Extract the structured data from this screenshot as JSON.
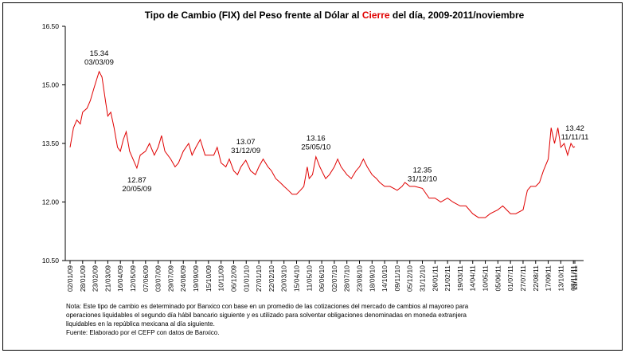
{
  "chart_data": {
    "type": "line",
    "title": [
      {
        "text": "Tipo de Cambio (FIX) del Peso frente al Dólar al ",
        "color": "#000000"
      },
      {
        "text": "Cierre",
        "color": "#e00000"
      },
      {
        "text": " del día, 2009-2011/noviembre",
        "color": "#000000"
      }
    ],
    "x": [
      "02/01/09",
      "09/01/09",
      "16/01/09",
      "23/01/09",
      "28/01/09",
      "06/02/09",
      "13/02/09",
      "20/02/09",
      "25/02/09",
      "03/03/09",
      "09/03/09",
      "16/03/09",
      "21/03/09",
      "27/03/09",
      "03/04/09",
      "10/04/09",
      "16/04/09",
      "22/04/09",
      "28/04/09",
      "05/05/09",
      "12/05/09",
      "20/05/09",
      "27/05/09",
      "07/06/09",
      "15/06/09",
      "25/06/09",
      "03/07/09",
      "10/07/09",
      "17/07/09",
      "29/07/09",
      "07/08/09",
      "14/08/09",
      "24/08/09",
      "04/09/09",
      "11/09/09",
      "19/09/09",
      "28/09/09",
      "08/10/09",
      "15/10/09",
      "26/10/09",
      "02/11/09",
      "10/11/09",
      "20/11/09",
      "27/11/09",
      "06/12/09",
      "14/12/09",
      "21/12/09",
      "31/12/09",
      "10/01/10",
      "20/01/10",
      "27/01/10",
      "05/02/10",
      "15/02/10",
      "22/02/10",
      "03/03/10",
      "12/03/10",
      "20/03/10",
      "29/03/10",
      "06/04/10",
      "15/04/10",
      "23/04/10",
      "30/04/10",
      "07/05/10",
      "11/05/10",
      "18/05/10",
      "25/05/10",
      "02/06/10",
      "06/06/10",
      "14/06/10",
      "22/06/10",
      "02/07/10",
      "09/07/10",
      "16/07/10",
      "28/07/10",
      "06/08/10",
      "16/08/10",
      "23/08/10",
      "31/08/10",
      "08/09/10",
      "18/09/10",
      "27/09/10",
      "04/10/10",
      "14/10/10",
      "25/10/10",
      "09/11/10",
      "19/11/10",
      "25/11/10",
      "05/12/10",
      "15/12/10",
      "31/12/10",
      "14/01/11",
      "26/01/11",
      "07/02/11",
      "21/02/11",
      "04/03/11",
      "19/03/11",
      "31/03/11",
      "14/04/11",
      "26/04/11",
      "10/05/11",
      "20/05/11",
      "05/06/11",
      "15/06/11",
      "01/07/11",
      "12/07/11",
      "27/07/11",
      "05/08/11",
      "12/08/11",
      "22/08/11",
      "30/08/11",
      "07/09/11",
      "17/09/11",
      "23/09/11",
      "30/09/11",
      "07/10/11",
      "13/10/11",
      "20/10/11",
      "27/10/11",
      "03/11/11",
      "08/11/11",
      "11/11/11"
    ],
    "series": [
      {
        "color": "#e00000",
        "values": [
          13.4,
          13.9,
          14.1,
          14.0,
          14.3,
          14.4,
          14.6,
          14.9,
          15.1,
          15.34,
          15.2,
          14.6,
          14.2,
          14.3,
          13.9,
          13.4,
          13.3,
          13.6,
          13.8,
          13.3,
          13.1,
          12.87,
          13.2,
          13.3,
          13.5,
          13.2,
          13.4,
          13.7,
          13.3,
          13.1,
          12.9,
          13.0,
          13.3,
          13.5,
          13.2,
          13.4,
          13.6,
          13.2,
          13.2,
          13.2,
          13.4,
          13.0,
          12.9,
          13.1,
          12.8,
          12.7,
          12.9,
          13.07,
          12.8,
          12.7,
          12.9,
          13.1,
          12.9,
          12.8,
          12.6,
          12.5,
          12.4,
          12.3,
          12.2,
          12.2,
          12.3,
          12.4,
          12.9,
          12.6,
          12.7,
          13.16,
          12.9,
          12.8,
          12.6,
          12.7,
          12.9,
          13.1,
          12.9,
          12.7,
          12.6,
          12.8,
          12.9,
          13.1,
          12.9,
          12.7,
          12.6,
          12.5,
          12.4,
          12.4,
          12.3,
          12.4,
          12.5,
          12.4,
          12.4,
          12.35,
          12.1,
          12.1,
          12.0,
          12.1,
          12.0,
          11.9,
          11.9,
          11.7,
          11.6,
          11.6,
          11.7,
          11.8,
          11.9,
          11.7,
          11.7,
          11.8,
          12.3,
          12.4,
          12.4,
          12.5,
          12.8,
          13.1,
          13.9,
          13.5,
          13.9,
          13.4,
          13.5,
          13.2,
          13.5,
          13.4,
          13.42
        ]
      }
    ],
    "xlim": [
      "02/01/09",
      "11/11/11"
    ],
    "xticks": [
      "02/01/09",
      "28/01/09",
      "23/02/09",
      "21/03/09",
      "16/04/09",
      "12/05/09",
      "07/06/09",
      "03/07/09",
      "29/07/09",
      "24/08/09",
      "19/09/09",
      "15/10/09",
      "10/11/09",
      "06/12/09",
      "01/01/10",
      "27/01/10",
      "22/02/10",
      "20/03/10",
      "15/04/10",
      "11/05/10",
      "06/06/10",
      "02/07/10",
      "28/07/10",
      "23/08/10",
      "18/09/10",
      "14/10/10",
      "09/11/10",
      "05/12/10",
      "31/12/10",
      "26/01/11",
      "21/02/11",
      "19/03/11",
      "14/04/11",
      "10/05/11",
      "05/06/11",
      "01/07/11",
      "27/07/11",
      "22/08/11",
      "17/09/11",
      "13/10/11",
      "08/11/11",
      "11/11/11"
    ],
    "ylim": [
      10.5,
      16.5
    ],
    "yticks": [
      {
        "value": 10.5,
        "label": "10.50"
      },
      {
        "value": 12,
        "label": "12.00"
      },
      {
        "value": 13.5,
        "label": "13.50"
      },
      {
        "value": 15,
        "label": "15.00"
      },
      {
        "value": 16.5,
        "label": "16.50"
      }
    ],
    "annotations": [
      {
        "value": 15.34,
        "date": "03/03/09",
        "placement": "above"
      },
      {
        "value": 12.87,
        "date": "20/05/09",
        "placement": "below"
      },
      {
        "value": 13.07,
        "date": "31/12/09",
        "placement": "above"
      },
      {
        "value": 13.16,
        "date": "25/05/10",
        "placement": "above"
      },
      {
        "value": 12.35,
        "date": "31/12/10",
        "placement": "above"
      },
      {
        "value": 13.42,
        "date": "11/11/11",
        "placement": "above"
      }
    ],
    "notes": [
      "Nota: Este tipo de cambio es determinado por Banxico con base en un promedio de las cotizaciones del mercado de cambios al mayoreo para",
      "operaciones liquidables el segundo día hábil bancario siguiente y es utilizado para solventar obligaciones denominadas en moneda extranjera",
      "liquidables en la república mexicana al día siguiente.",
      "Fuente: Elaborado por el CEFP con datos de Banxico."
    ]
  }
}
